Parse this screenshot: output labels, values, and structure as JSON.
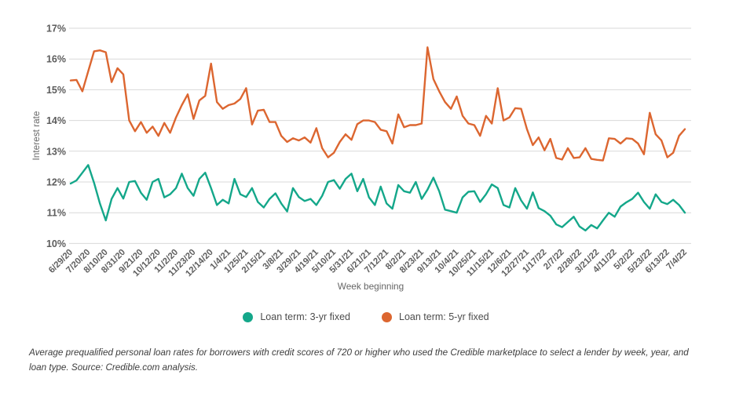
{
  "caption": {
    "text": "Average prequalified personal loan rates for borrowers with credit scores of 720 or higher who used the Credible marketplace to select a lender by week, year, and loan type. Source: Credible.com analysis."
  },
  "chart_data": {
    "type": "line",
    "title": "",
    "xlabel": "Week beginning",
    "ylabel": "Interest rate",
    "ylim": [
      10,
      17
    ],
    "grid": true,
    "grid_color": "#d9d9d9",
    "legend_position": "bottom",
    "y_ticks": [
      "17%",
      "16%",
      "15%",
      "14%",
      "13%",
      "12%",
      "11%",
      "10%"
    ],
    "x_tick_labels": [
      "6/29/20",
      "7/20/20",
      "8/10/20",
      "8/31/20",
      "9/21/20",
      "10/12/20",
      "11/2/20",
      "11/23/20",
      "12/14/20",
      "1/4/21",
      "1/25/21",
      "2/15/21",
      "3/8/21",
      "3/29/21",
      "4/19/21",
      "5/10/21",
      "5/31/21",
      "6/21/21",
      "7/12/21",
      "8/2/21",
      "8/23/21",
      "9/13/21",
      "10/4/21",
      "10/25/21",
      "11/15/21",
      "12/6/21",
      "12/27/21",
      "1/17/22",
      "2/7/22",
      "2/28/22",
      "3/21/22",
      "4/11/22",
      "5/2/22",
      "5/23/22",
      "6/13/22",
      "7/4/22"
    ],
    "x": [
      "6/29/20",
      "7/6/20",
      "7/13/20",
      "7/20/20",
      "7/27/20",
      "8/3/20",
      "8/10/20",
      "8/17/20",
      "8/24/20",
      "8/31/20",
      "9/7/20",
      "9/14/20",
      "9/21/20",
      "9/28/20",
      "10/5/20",
      "10/12/20",
      "10/19/20",
      "10/26/20",
      "11/2/20",
      "11/9/20",
      "11/16/20",
      "11/23/20",
      "11/30/20",
      "12/7/20",
      "12/14/20",
      "12/21/20",
      "12/28/20",
      "1/4/21",
      "1/11/21",
      "1/18/21",
      "1/25/21",
      "2/1/21",
      "2/8/21",
      "2/15/21",
      "2/22/21",
      "3/1/21",
      "3/8/21",
      "3/15/21",
      "3/22/21",
      "3/29/21",
      "4/5/21",
      "4/12/21",
      "4/19/21",
      "4/26/21",
      "5/3/21",
      "5/10/21",
      "5/17/21",
      "5/24/21",
      "5/31/21",
      "6/7/21",
      "6/14/21",
      "6/21/21",
      "6/28/21",
      "7/5/21",
      "7/12/21",
      "7/19/21",
      "7/26/21",
      "8/2/21",
      "8/9/21",
      "8/16/21",
      "8/23/21",
      "8/30/21",
      "9/6/21",
      "9/13/21",
      "9/20/21",
      "9/27/21",
      "10/4/21",
      "10/11/21",
      "10/18/21",
      "10/25/21",
      "11/1/21",
      "11/8/21",
      "11/15/21",
      "11/22/21",
      "11/29/21",
      "12/6/21",
      "12/13/21",
      "12/20/21",
      "12/27/21",
      "1/3/22",
      "1/10/22",
      "1/17/22",
      "1/24/22",
      "1/31/22",
      "2/7/22",
      "2/14/22",
      "2/21/22",
      "2/28/22",
      "3/7/22",
      "3/14/22",
      "3/21/22",
      "3/28/22",
      "4/4/22",
      "4/11/22",
      "4/18/22",
      "4/25/22",
      "5/2/22",
      "5/9/22",
      "5/16/22",
      "5/23/22",
      "5/30/22",
      "6/6/22",
      "6/13/22",
      "6/20/22",
      "6/27/22",
      "7/4/22"
    ],
    "series": [
      {
        "name": "Loan term: 3-yr fixed",
        "color": "#14A78A",
        "values": [
          11.95,
          12.05,
          12.3,
          12.55,
          11.97,
          11.3,
          10.75,
          11.45,
          11.8,
          11.46,
          12.0,
          12.03,
          11.65,
          11.42,
          12.0,
          12.1,
          11.5,
          11.6,
          11.8,
          12.27,
          11.8,
          11.55,
          12.1,
          12.3,
          11.8,
          11.25,
          11.42,
          11.3,
          12.1,
          11.6,
          11.51,
          11.8,
          11.35,
          11.17,
          11.45,
          11.63,
          11.3,
          11.04,
          11.8,
          11.51,
          11.38,
          11.45,
          11.25,
          11.55,
          12.0,
          12.06,
          11.78,
          12.1,
          12.27,
          11.7,
          12.1,
          11.5,
          11.25,
          11.85,
          11.3,
          11.13,
          11.9,
          11.7,
          11.65,
          12.0,
          11.45,
          11.75,
          12.14,
          11.7,
          11.1,
          11.05,
          11.0,
          11.5,
          11.68,
          11.7,
          11.35,
          11.6,
          11.92,
          11.8,
          11.25,
          11.17,
          11.8,
          11.4,
          11.13,
          11.66,
          11.15,
          11.05,
          10.9,
          10.62,
          10.53,
          10.7,
          10.87,
          10.55,
          10.42,
          10.6,
          10.49,
          10.75,
          11.0,
          10.87,
          11.2,
          11.34,
          11.45,
          11.65,
          11.35,
          11.13,
          11.6,
          11.35,
          11.28,
          11.42,
          11.25,
          11.0
        ]
      },
      {
        "name": "Loan term: 5-yr fixed",
        "color": "#DC6630",
        "values": [
          15.3,
          15.32,
          14.95,
          15.6,
          16.25,
          16.28,
          16.22,
          15.25,
          15.7,
          15.5,
          14.0,
          13.65,
          13.95,
          13.6,
          13.8,
          13.5,
          13.92,
          13.6,
          14.1,
          14.5,
          14.85,
          14.05,
          14.65,
          14.8,
          15.85,
          14.6,
          14.38,
          14.5,
          14.55,
          14.7,
          15.05,
          13.87,
          14.32,
          14.35,
          13.95,
          13.95,
          13.5,
          13.3,
          13.42,
          13.35,
          13.45,
          13.28,
          13.75,
          13.1,
          12.8,
          12.95,
          13.3,
          13.55,
          13.37,
          13.88,
          14.0,
          14.0,
          13.95,
          13.7,
          13.65,
          13.25,
          14.2,
          13.78,
          13.85,
          13.85,
          13.9,
          16.38,
          15.35,
          14.95,
          14.6,
          14.38,
          14.78,
          14.15,
          13.9,
          13.85,
          13.5,
          14.15,
          13.9,
          15.05,
          14.0,
          14.1,
          14.4,
          14.38,
          13.72,
          13.2,
          13.45,
          13.03,
          13.4,
          12.78,
          12.73,
          13.1,
          12.78,
          12.8,
          13.1,
          12.75,
          12.72,
          12.7,
          13.42,
          13.4,
          13.25,
          13.42,
          13.4,
          13.25,
          12.9,
          14.25,
          13.55,
          13.35,
          12.8,
          12.95,
          13.5,
          13.72
        ]
      }
    ]
  }
}
